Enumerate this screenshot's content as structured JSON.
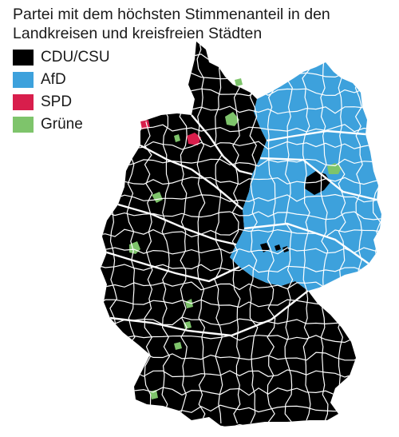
{
  "title": "Partei mit dem höchsten Stimmenanteil in den Landkreisen und kreisfreien Städten",
  "legend": [
    {
      "label": "CDU/CSU",
      "color": "#000000"
    },
    {
      "label": "AfD",
      "color": "#3da1dc"
    },
    {
      "label": "SPD",
      "color": "#d81e4c"
    },
    {
      "label": "Grüne",
      "color": "#7ec46b"
    }
  ],
  "map": {
    "border_color": "#ffffff"
  }
}
